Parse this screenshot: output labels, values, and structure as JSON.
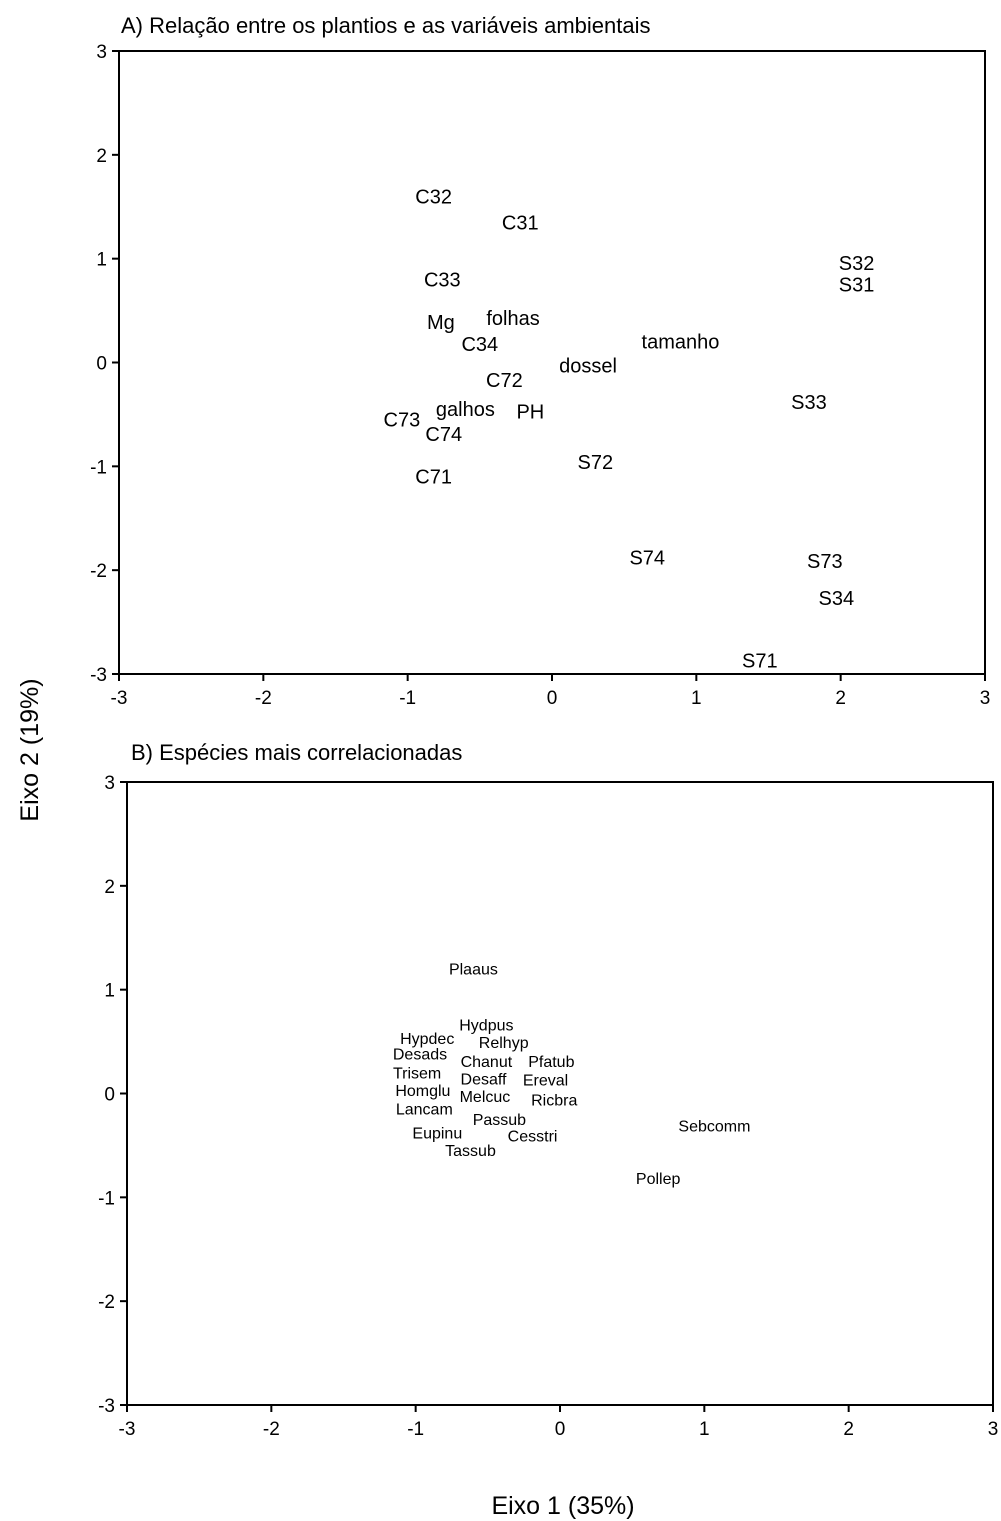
{
  "shared": {
    "ylabel": "Eixo 2 (19%)",
    "xlabel": "Eixo 1 (35%)"
  },
  "chart_data": [
    {
      "type": "scatter",
      "title": "A) Relação entre os plantios e as variáveis ambientais",
      "xlabel": "",
      "ylabel": "",
      "xlim": [
        -3,
        3
      ],
      "ylim": [
        -3,
        3
      ],
      "xticks": [
        "-3",
        "-2",
        "-1",
        "0",
        "1",
        "2",
        "3"
      ],
      "yticks": [
        "-3",
        "-2",
        "-1",
        "0",
        "1",
        "2",
        "3"
      ],
      "grid": false,
      "legend": "none",
      "points": [
        {
          "label": "C32",
          "x": -0.82,
          "y": 1.6
        },
        {
          "label": "C31",
          "x": -0.22,
          "y": 1.35
        },
        {
          "label": "C33",
          "x": -0.76,
          "y": 0.8
        },
        {
          "label": "Mg",
          "x": -0.77,
          "y": 0.39
        },
        {
          "label": "folhas",
          "x": -0.27,
          "y": 0.43
        },
        {
          "label": "C34",
          "x": -0.5,
          "y": 0.18
        },
        {
          "label": "tamanho",
          "x": 0.89,
          "y": 0.2
        },
        {
          "label": "dossel",
          "x": 0.25,
          "y": -0.03
        },
        {
          "label": "C72",
          "x": -0.33,
          "y": -0.17
        },
        {
          "label": "galhos",
          "x": -0.6,
          "y": -0.45
        },
        {
          "label": "PH",
          "x": -0.15,
          "y": -0.47
        },
        {
          "label": "C73",
          "x": -1.04,
          "y": -0.55
        },
        {
          "label": "C74",
          "x": -0.75,
          "y": -0.69
        },
        {
          "label": "C71",
          "x": -0.82,
          "y": -1.1
        },
        {
          "label": "S72",
          "x": 0.3,
          "y": -0.96
        },
        {
          "label": "S32",
          "x": 2.11,
          "y": 0.96
        },
        {
          "label": "S31",
          "x": 2.11,
          "y": 0.75
        },
        {
          "label": "S33",
          "x": 1.78,
          "y": -0.38
        },
        {
          "label": "S74",
          "x": 0.66,
          "y": -1.88
        },
        {
          "label": "S73",
          "x": 1.89,
          "y": -1.91
        },
        {
          "label": "S34",
          "x": 1.97,
          "y": -2.27
        },
        {
          "label": "S71",
          "x": 1.44,
          "y": -2.87
        }
      ]
    },
    {
      "type": "scatter",
      "title": "B) Espécies mais correlacionadas",
      "xlabel": "",
      "ylabel": "",
      "xlim": [
        -3,
        3
      ],
      "ylim": [
        -3,
        3
      ],
      "xticks": [
        "-3",
        "-2",
        "-1",
        "0",
        "1",
        "2",
        "3"
      ],
      "yticks": [
        "-3",
        "-2",
        "-1",
        "0",
        "1",
        "2",
        "3"
      ],
      "grid": false,
      "legend": "none",
      "points": [
        {
          "label": "Plaaus",
          "x": -0.6,
          "y": 1.2
        },
        {
          "label": "Hydpus",
          "x": -0.51,
          "y": 0.66
        },
        {
          "label": "Hypdec",
          "x": -0.92,
          "y": 0.53
        },
        {
          "label": "Relhyp",
          "x": -0.39,
          "y": 0.49
        },
        {
          "label": "Desads",
          "x": -0.97,
          "y": 0.38
        },
        {
          "label": "Chanut",
          "x": -0.51,
          "y": 0.31
        },
        {
          "label": "Pfatub",
          "x": -0.06,
          "y": 0.31
        },
        {
          "label": "Trisem",
          "x": -0.99,
          "y": 0.2
        },
        {
          "label": "Desaff",
          "x": -0.53,
          "y": 0.14
        },
        {
          "label": "Ereval",
          "x": -0.1,
          "y": 0.13
        },
        {
          "label": "Homglu",
          "x": -0.95,
          "y": 0.03
        },
        {
          "label": "Melcuc",
          "x": -0.52,
          "y": -0.03
        },
        {
          "label": "Ricbra",
          "x": -0.04,
          "y": -0.06
        },
        {
          "label": "Lancam",
          "x": -0.94,
          "y": -0.15
        },
        {
          "label": "Passub",
          "x": -0.42,
          "y": -0.25
        },
        {
          "label": "Eupinu",
          "x": -0.85,
          "y": -0.38
        },
        {
          "label": "Cesstri",
          "x": -0.19,
          "y": -0.41
        },
        {
          "label": "Tassub",
          "x": -0.62,
          "y": -0.55
        },
        {
          "label": "Sebcomm",
          "x": 1.07,
          "y": -0.31
        },
        {
          "label": "Pollep",
          "x": 0.68,
          "y": -0.82
        }
      ]
    }
  ]
}
